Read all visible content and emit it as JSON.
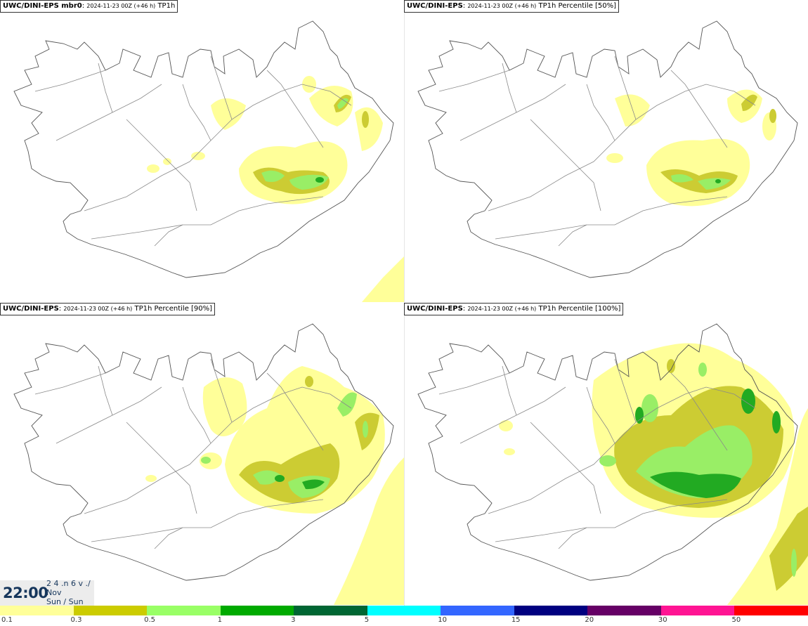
{
  "panels": [
    {
      "source": "UWC/DINI-EPS mbr0",
      "run": "2024-11-23 00Z (+46 h)",
      "param": "TP1h"
    },
    {
      "source": "UWC/DINI-EPS",
      "run": "2024-11-23 00Z (+46 h)",
      "param": "TP1h Percentile [50%]"
    },
    {
      "source": "UWC/DINI-EPS",
      "run": "2024-11-23 00Z (+46 h)",
      "param": "TP1h Percentile [90%]"
    },
    {
      "source": "UWC/DINI-EPS",
      "run": "2024-11-23 00Z (+46 h)",
      "param": "TP1h Percentile [100%]"
    }
  ],
  "valid_time": {
    "time": "22:00",
    "date_line1": "2 4 .n 6 v ./",
    "date_line2": "Nov",
    "date_line3": "Sun / Sun"
  },
  "colorbar": {
    "colors": [
      "#ffff99",
      "#cccc00",
      "#99ff66",
      "#00aa00",
      "#006633",
      "#00ffff",
      "#3366ff",
      "#000080",
      "#660066",
      "#ff1493",
      "#ff0000"
    ],
    "labels": [
      "0.1",
      "0.3",
      "0.5",
      "1",
      "3",
      "5",
      "10",
      "15",
      "20",
      "30",
      "50"
    ]
  },
  "palette": {
    "light": "#ffff99",
    "olive": "#cccc33",
    "lightgreen": "#99ee66",
    "green": "#22aa22",
    "darkgreen": "#008822",
    "coast": "#555555",
    "roads": "#888888"
  }
}
